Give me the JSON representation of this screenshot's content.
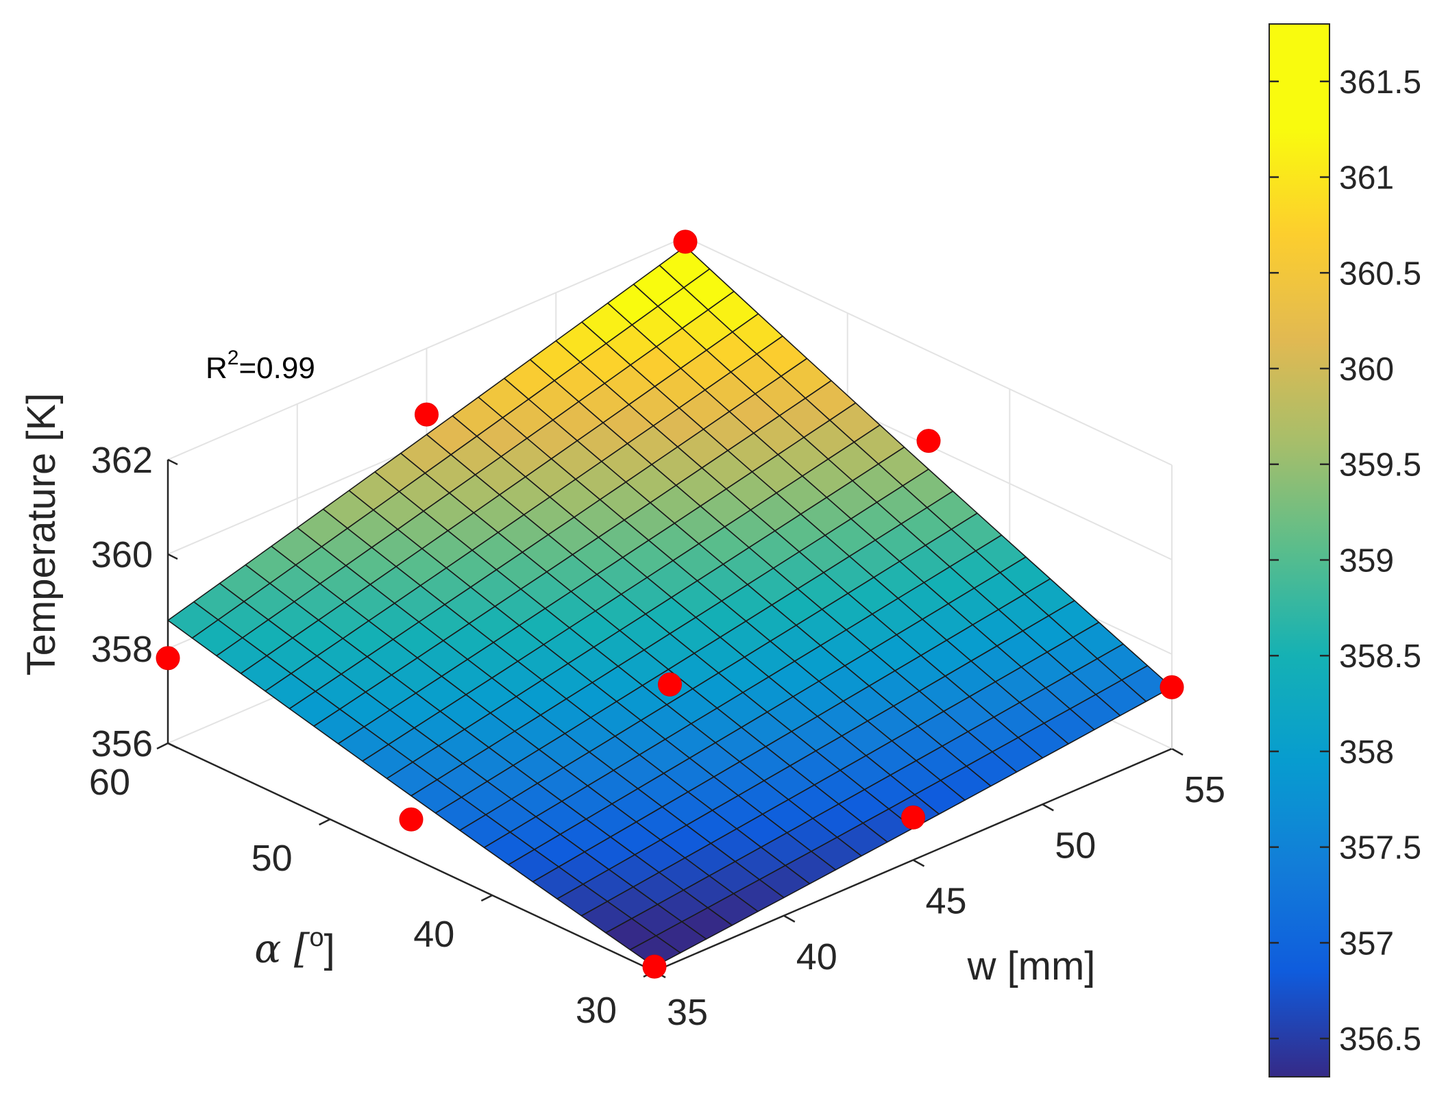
{
  "chart_data": {
    "type": "surface3d",
    "title": "",
    "xlabel": "w [mm]",
    "ylabel_prefix": "α [",
    "ylabel_sup": "o",
    "ylabel_suffix": "]",
    "zlabel": "Temperature [K]",
    "annotation": {
      "prefix": "R",
      "sup": "2",
      "suffix": "=0.99"
    },
    "x_axis": {
      "name": "w",
      "range": [
        35,
        55
      ],
      "ticks": [
        35,
        40,
        45,
        50,
        55
      ]
    },
    "y_axis": {
      "name": "alpha",
      "range": [
        30,
        60
      ],
      "ticks": [
        30,
        40,
        50,
        60
      ]
    },
    "z_axis": {
      "range": [
        356,
        362
      ],
      "ticks": [
        356,
        358,
        360,
        362
      ]
    },
    "surface": {
      "grid_divisions": 20,
      "model": "T = 356.1 + 2.3*u + 1.1*v + 2.0*u*v + 0.2*u^2 + 0.1*v^2, u=(alpha-30)/30, v=(w-35)/20"
    },
    "colorbar": {
      "range": [
        356.3,
        361.8
      ],
      "ticks": [
        356.5,
        357,
        357.5,
        358,
        358.5,
        359,
        359.5,
        360,
        360.5,
        361,
        361.5
      ],
      "tick_labels": [
        "356.5",
        "357",
        "357.5",
        "358",
        "358.5",
        "359",
        "359.5",
        "360",
        "360.5",
        "361",
        "361.5"
      ],
      "colormap": "parula"
    },
    "points": [
      {
        "w": 35,
        "alpha": 30,
        "T": 356.1
      },
      {
        "w": 35,
        "alpha": 45,
        "T": 356.8
      },
      {
        "w": 35,
        "alpha": 60,
        "T": 357.8
      },
      {
        "w": 45,
        "alpha": 30,
        "T": 356.9
      },
      {
        "w": 45,
        "alpha": 45,
        "T": 357.3
      },
      {
        "w": 45,
        "alpha": 60,
        "T": 360.6
      },
      {
        "w": 55,
        "alpha": 30,
        "T": 357.3
      },
      {
        "w": 55,
        "alpha": 45,
        "T": 360.1
      },
      {
        "w": 55,
        "alpha": 60,
        "T": 361.9
      }
    ]
  }
}
